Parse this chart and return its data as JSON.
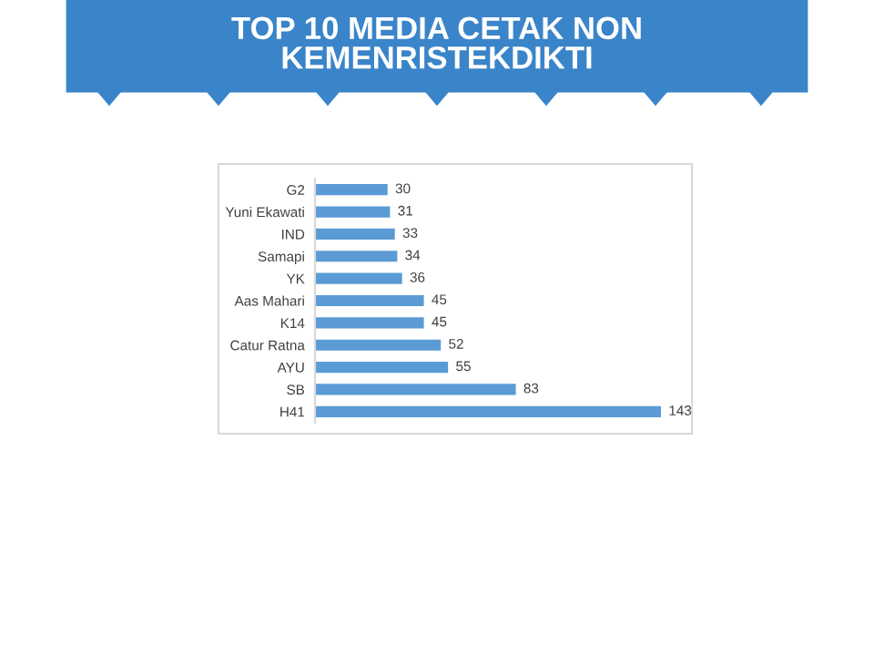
{
  "chart_data": {
    "type": "bar",
    "orientation": "horizontal",
    "title": "TOP 10 MEDIA CETAK NON\nKEMENRISTEKDIKTI",
    "categories": [
      "G2",
      "Yuni Ekawati",
      "IND",
      "Samapi",
      "YK",
      "Aas Mahari",
      "K14",
      "Catur Ratna",
      "AYU",
      "SB",
      "H41"
    ],
    "values": [
      30,
      31,
      33,
      34,
      36,
      45,
      45,
      52,
      55,
      83,
      143
    ],
    "color": "#5b9bd5",
    "data_labels": true,
    "grid": false,
    "legend": false
  }
}
